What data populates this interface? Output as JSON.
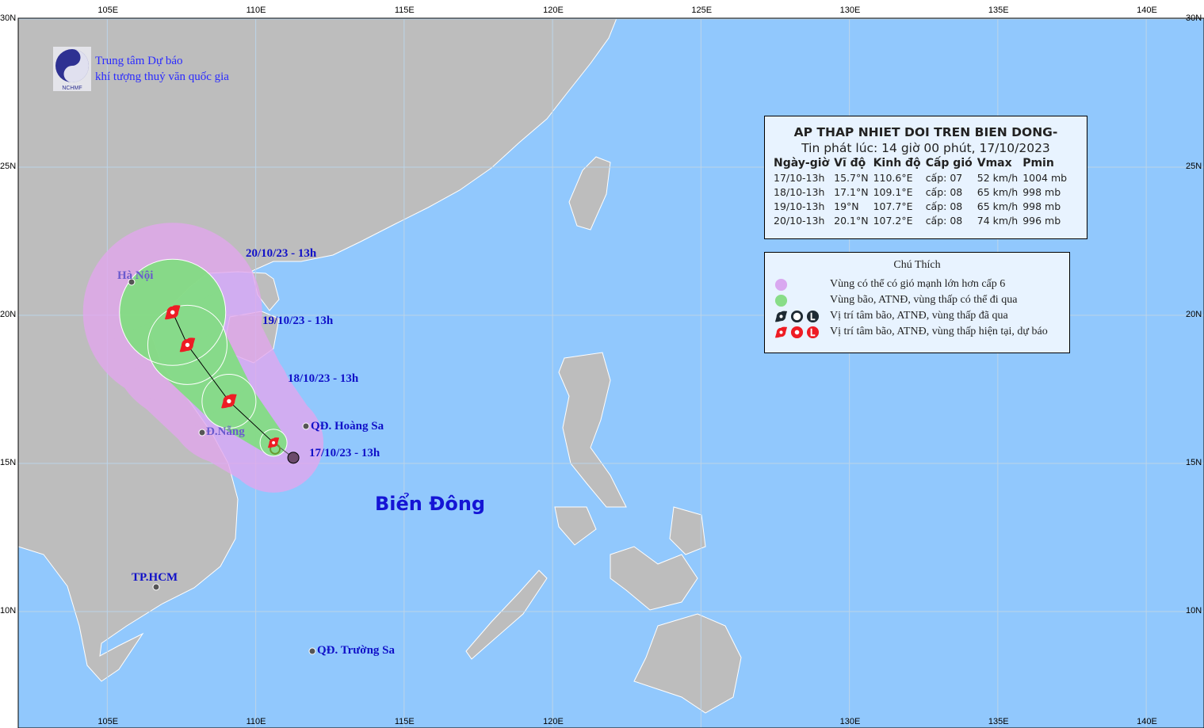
{
  "map": {
    "colors": {
      "ocean": "#91c8fd",
      "land": "#bdbdbd",
      "danger_zone": "#e3a6ee",
      "storm_zone": "#7fdf7f",
      "forecast_symbol": "#ee1c24",
      "past_symbol": "#1e2a33"
    },
    "axis": {
      "top_ticks": [
        "105E",
        "110E",
        "115E",
        "120E",
        "125E",
        "130E",
        "135E",
        "140E"
      ],
      "bottom_ticks": [
        "105E",
        "110E",
        "115E",
        "120E",
        "130E",
        "135E",
        "140E"
      ],
      "left_ticks": [
        "30N",
        "25N",
        "20N",
        "15N",
        "10N"
      ],
      "right_ticks": [
        "30N",
        "25N",
        "20N",
        "15N",
        "10N"
      ]
    },
    "sea_label": "Biển Đông",
    "places": [
      {
        "name": "Hà Nội"
      },
      {
        "name": "Đ.Nẵng"
      },
      {
        "name": "QĐ. Hoàng Sa"
      },
      {
        "name": "TP.HCM"
      },
      {
        "name": "QĐ. Trường Sa"
      }
    ],
    "track_labels": [
      "17/10/23 - 13h",
      "18/10/23 - 13h",
      "19/10/23 - 13h",
      "20/10/23 - 13h"
    ],
    "track_points": [
      {
        "lat": 15.7,
        "lon": 110.6
      },
      {
        "lat": 17.1,
        "lon": 109.1
      },
      {
        "lat": 19.0,
        "lon": 107.7
      },
      {
        "lat": 20.1,
        "lon": 107.2
      }
    ]
  },
  "logo": {
    "text": "NCHMF",
    "org_line1": "Trung tâm Dự báo",
    "org_line2": "khí tượng thuỷ văn quốc gia"
  },
  "info": {
    "title": "AP THAP NHIET DOI TREN BIEN DONG-",
    "issued": "Tin phát lúc: 14 giờ 00 phút, 17/10/2023",
    "headers": [
      "Ngày-giờ",
      "Vĩ độ",
      "Kinh độ",
      "Cấp gió",
      "Vmax",
      "Pmin"
    ],
    "rows": [
      [
        "17/10-13h",
        "15.7°N",
        "110.6°E",
        "cấp: 07",
        "52 km/h",
        "1004 mb"
      ],
      [
        "18/10-13h",
        "17.1°N",
        "109.1°E",
        "cấp: 08",
        "65 km/h",
        "998 mb"
      ],
      [
        "19/10-13h",
        "19°N",
        "107.7°E",
        "cấp: 08",
        "65 km/h",
        "998 mb"
      ],
      [
        "20/10-13h",
        "20.1°N",
        "107.2°E",
        "cấp: 08",
        "74 km/h",
        "996 mb"
      ]
    ]
  },
  "legend": {
    "title": "Chú Thích",
    "items": [
      "Vùng có thể có gió mạnh lớn hơn cấp 6",
      "Vùng bão, ATNĐ, vùng thấp có thể đi qua",
      "Vị trí tâm bão, ATNĐ, vùng thấp đã qua",
      "Vị trí tâm bão, ATNĐ, vùng thấp hiện tại, dự báo"
    ]
  }
}
